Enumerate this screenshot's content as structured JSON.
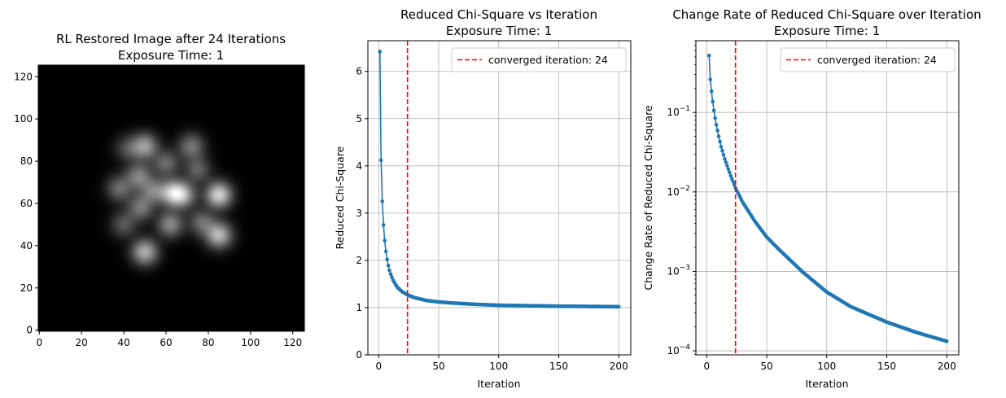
{
  "chart_data": [
    {
      "type": "heatmap",
      "title_lines": [
        "RL Restored Image after 24 Iterations",
        "Exposure Time: 1"
      ],
      "colormap": "gray",
      "xlim": [
        -0.5,
        125.5
      ],
      "ylim": [
        -0.5,
        125.5
      ],
      "x_ticks": [
        0,
        20,
        40,
        60,
        80,
        100,
        120
      ],
      "y_ticks": [
        0,
        20,
        40,
        60,
        80,
        100,
        120
      ],
      "sources": [
        {
          "x": 85,
          "y": 64,
          "intensity": 1.0
        },
        {
          "x": 85,
          "y": 45,
          "intensity": 0.85
        },
        {
          "x": 50,
          "y": 37,
          "intensity": 0.8
        },
        {
          "x": 63,
          "y": 65,
          "intensity": 0.8
        },
        {
          "x": 68,
          "y": 64,
          "intensity": 0.7
        },
        {
          "x": 50,
          "y": 87,
          "intensity": 0.7
        },
        {
          "x": 47,
          "y": 73,
          "intensity": 0.55
        },
        {
          "x": 72,
          "y": 87,
          "intensity": 0.5
        },
        {
          "x": 62,
          "y": 50,
          "intensity": 0.6
        },
        {
          "x": 48,
          "y": 58,
          "intensity": 0.5
        },
        {
          "x": 38,
          "y": 67,
          "intensity": 0.45
        },
        {
          "x": 60,
          "y": 79,
          "intensity": 0.45
        },
        {
          "x": 77,
          "y": 51,
          "intensity": 0.45
        },
        {
          "x": 75,
          "y": 76,
          "intensity": 0.4
        },
        {
          "x": 54,
          "y": 66,
          "intensity": 0.5
        },
        {
          "x": 42,
          "y": 86,
          "intensity": 0.3
        },
        {
          "x": 40,
          "y": 50,
          "intensity": 0.35
        }
      ]
    },
    {
      "type": "line",
      "title_lines": [
        "Reduced Chi-Square vs Iteration",
        "Exposure Time: 1"
      ],
      "xlabel": "Iteration",
      "ylabel": "Reduced Chi-Square",
      "xlim": [
        -9,
        210
      ],
      "ylim": [
        0,
        6.65
      ],
      "x_ticks": [
        0,
        50,
        100,
        150,
        200
      ],
      "y_ticks": [
        0,
        1,
        2,
        3,
        4,
        5,
        6
      ],
      "grid": true,
      "series_color": "#1f77b4",
      "x_range": [
        1,
        200
      ],
      "key_points": [
        [
          1,
          6.42
        ],
        [
          2,
          4.12
        ],
        [
          3,
          3.25
        ],
        [
          4,
          2.75
        ],
        [
          5,
          2.42
        ],
        [
          6,
          2.19
        ],
        [
          7,
          2.02
        ],
        [
          8,
          1.89
        ],
        [
          9,
          1.79
        ],
        [
          10,
          1.71
        ],
        [
          12,
          1.58
        ],
        [
          14,
          1.49
        ],
        [
          16,
          1.42
        ],
        [
          18,
          1.37
        ],
        [
          20,
          1.33
        ],
        [
          24,
          1.27
        ],
        [
          30,
          1.21
        ],
        [
          40,
          1.15
        ],
        [
          50,
          1.12
        ],
        [
          60,
          1.1
        ],
        [
          80,
          1.07
        ],
        [
          100,
          1.05
        ],
        [
          150,
          1.03
        ],
        [
          200,
          1.02
        ]
      ],
      "vline": {
        "x": 24,
        "color": "#ff0000",
        "label": "converged iteration: 24"
      },
      "legend": "top-right"
    },
    {
      "type": "line",
      "title_lines": [
        "Change Rate of Reduced Chi-Square over Iteration",
        "Exposure Time: 1"
      ],
      "xlabel": "Iteration",
      "ylabel": "Change Rate of Reduced Chi-Square",
      "yscale": "log",
      "xlim": [
        -9,
        210
      ],
      "ylim": [
        8.9e-05,
        0.8
      ],
      "x_ticks": [
        0,
        50,
        100,
        150,
        200
      ],
      "y_ticks": [
        0.0001,
        0.001,
        0.01,
        0.1
      ],
      "y_tick_labels": [
        {
          "base": "10",
          "exp": "−4"
        },
        {
          "base": "10",
          "exp": "−3"
        },
        {
          "base": "10",
          "exp": "−2"
        },
        {
          "base": "10",
          "exp": "−1"
        }
      ],
      "grid": true,
      "series_color": "#1f77b4",
      "x_range": [
        2,
        200
      ],
      "key_points": [
        [
          2,
          0.52
        ],
        [
          3,
          0.26
        ],
        [
          4,
          0.185
        ],
        [
          5,
          0.137
        ],
        [
          6,
          0.106
        ],
        [
          7,
          0.085
        ],
        [
          8,
          0.07
        ],
        [
          10,
          0.05
        ],
        [
          12,
          0.037
        ],
        [
          15,
          0.026
        ],
        [
          20,
          0.016
        ],
        [
          24,
          0.0112
        ],
        [
          30,
          0.0074
        ],
        [
          40,
          0.0043
        ],
        [
          50,
          0.0027
        ],
        [
          60,
          0.0019
        ],
        [
          80,
          0.00098
        ],
        [
          100,
          0.00055
        ],
        [
          120,
          0.00036
        ],
        [
          150,
          0.00023
        ],
        [
          175,
          0.00017
        ],
        [
          200,
          0.000132
        ]
      ],
      "vline": {
        "x": 24,
        "color": "#ff0000",
        "label": "converged iteration: 24"
      },
      "legend": "top-right"
    }
  ]
}
